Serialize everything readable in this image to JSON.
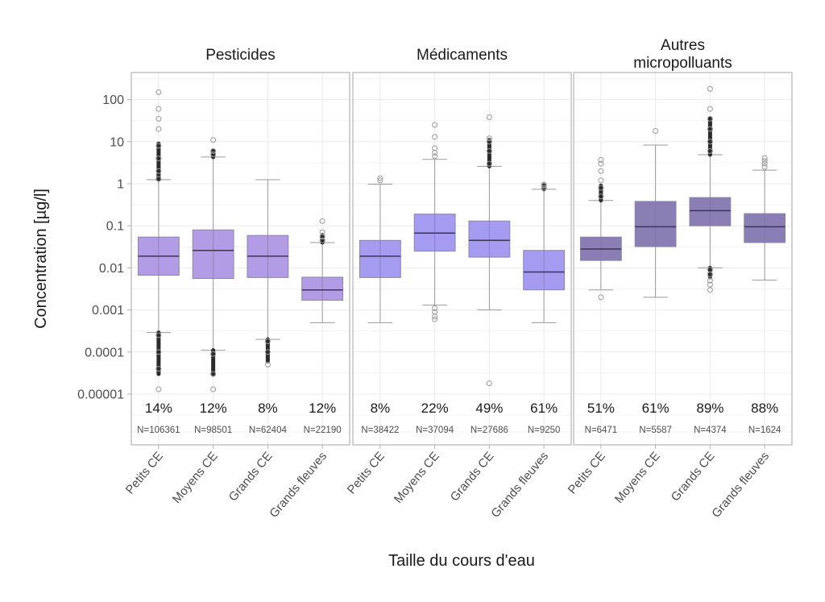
{
  "chart_data": {
    "type": "boxplot",
    "xlabel": "Taille du cours d'eau",
    "ylabel": "Concentration [µg/l]",
    "yscale": "log10",
    "ylim": [
      5e-06,
      500
    ],
    "yticks": [
      {
        "value": 100,
        "label": "100"
      },
      {
        "value": 10,
        "label": "10"
      },
      {
        "value": 1,
        "label": "1"
      },
      {
        "value": 0.1,
        "label": "0.1"
      },
      {
        "value": 0.01,
        "label": "0.01"
      },
      {
        "value": 0.001,
        "label": "0.001"
      },
      {
        "value": 0.0001,
        "label": "0.0001"
      },
      {
        "value": 1e-05,
        "label": "0.00001"
      }
    ],
    "categories": [
      "Petits CE",
      "Moyens CE",
      "Grands CE",
      "Grands fleuves"
    ],
    "grid": true,
    "panels": [
      {
        "title": [
          "Pesticides"
        ],
        "color": "#b39ce6",
        "boxes": [
          {
            "category": "Petits CE",
            "low": 0.00029,
            "q1": 0.0067,
            "median": 0.019,
            "q3": 0.054,
            "high": 1.25,
            "outliers_high": [
              1.3,
              2,
              4,
              8,
              20,
              35,
              60,
              150
            ],
            "outliers_low": [
              0.00025,
              0.0001,
              4e-05,
              1.3e-05
            ],
            "dense_high": [
              1.25,
              9
            ],
            "dense_low": [
              3e-05,
              0.00029
            ],
            "percent": "14%",
            "n": "N=106361"
          },
          {
            "category": "Moyens CE",
            "low": 0.00011,
            "q1": 0.0056,
            "median": 0.026,
            "q3": 0.08,
            "high": 4.3,
            "outliers_high": [
              5,
              6,
              11
            ],
            "outliers_low": [
              9e-05,
              3e-05,
              1.3e-05
            ],
            "dense_high": [
              4.3,
              6
            ],
            "dense_low": [
              3e-05,
              0.00011
            ],
            "percent": "12%",
            "n": "N=98501"
          },
          {
            "category": "Grands CE",
            "low": 0.0002,
            "q1": 0.0059,
            "median": 0.019,
            "q3": 0.059,
            "high": 1.25,
            "outliers_high": [],
            "outliers_low": [
              0.00018,
              0.0001,
              5e-05
            ],
            "dense_low": [
              6e-05,
              0.0002
            ],
            "percent": "8%",
            "n": "N=62404"
          },
          {
            "category": "Grands fleuves",
            "low": 0.0005,
            "q1": 0.0017,
            "median": 0.003,
            "q3": 0.006,
            "high": 0.04,
            "outliers_high": [
              0.045,
              0.055,
              0.07,
              0.13
            ],
            "outliers_low": [],
            "dense_high": [
              0.04,
              0.06
            ],
            "percent": "12%",
            "n": "N=22190"
          }
        ]
      },
      {
        "title": [
          "Médicaments"
        ],
        "color": "#a59bf0",
        "boxes": [
          {
            "category": "Petits CE",
            "low": 0.0005,
            "q1": 0.0059,
            "median": 0.019,
            "q3": 0.045,
            "high": 0.98,
            "outliers_high": [
              1.2,
              1.35
            ],
            "outliers_low": [],
            "percent": "8%",
            "n": "N=38422"
          },
          {
            "category": "Moyens CE",
            "low": 0.0013,
            "q1": 0.025,
            "median": 0.067,
            "q3": 0.19,
            "high": 3.8,
            "outliers_high": [
              4.5,
              5.5,
              7,
              13,
              25
            ],
            "outliers_low": [
              0.0011,
              0.0009,
              0.0007,
              0.0006
            ],
            "percent": "22%",
            "n": "N=37094"
          },
          {
            "category": "Grands CE",
            "low": 0.001,
            "q1": 0.018,
            "median": 0.045,
            "q3": 0.13,
            "high": 2.6,
            "outliers_high": [
              3,
              6,
              10,
              12,
              38
            ],
            "outliers_low": [
              1.8e-05
            ],
            "dense_high": [
              2.6,
              11
            ],
            "percent": "49%",
            "n": "N=27686"
          },
          {
            "category": "Grands fleuves",
            "low": 0.0005,
            "q1": 0.003,
            "median": 0.008,
            "q3": 0.026,
            "high": 0.74,
            "outliers_high": [
              0.8,
              0.9,
              0.95
            ],
            "outliers_low": [],
            "dense_high": [
              0.74,
              0.95
            ],
            "percent": "61%",
            "n": "N=9250"
          }
        ]
      },
      {
        "title": [
          "Autres",
          "micropolluants"
        ],
        "color": "#8a7fb5",
        "boxes": [
          {
            "category": "Petits CE",
            "low": 0.003,
            "q1": 0.015,
            "median": 0.028,
            "q3": 0.054,
            "high": 0.4,
            "outliers_high": [
              0.5,
              0.8,
              1.2,
              2,
              3,
              3.7
            ],
            "outliers_low": [
              0.002
            ],
            "dense_high": [
              0.4,
              0.9
            ],
            "percent": "51%",
            "n": "N=6471"
          },
          {
            "category": "Moyens CE",
            "low": 0.002,
            "q1": 0.032,
            "median": 0.095,
            "q3": 0.38,
            "high": 8.3,
            "outliers_high": [
              18
            ],
            "outliers_low": [],
            "percent": "61%",
            "n": "N=5587"
          },
          {
            "category": "Grands CE",
            "low": 0.01,
            "q1": 0.1,
            "median": 0.23,
            "q3": 0.47,
            "high": 4.9,
            "outliers_high": [
              6,
              10,
              20,
              35,
              60,
              180
            ],
            "outliers_low": [
              0.009,
              0.007,
              0.005,
              0.004,
              0.003
            ],
            "dense_high": [
              4.9,
              35
            ],
            "dense_low": [
              0.006,
              0.01
            ],
            "percent": "89%",
            "n": "N=4374"
          },
          {
            "category": "Grands fleuves",
            "low": 0.0051,
            "q1": 0.04,
            "median": 0.095,
            "q3": 0.195,
            "high": 2.1,
            "outliers_high": [
              2.5,
              3,
              3.5,
              4.1
            ],
            "outliers_low": [],
            "percent": "88%",
            "n": "N=1624"
          }
        ]
      }
    ]
  }
}
